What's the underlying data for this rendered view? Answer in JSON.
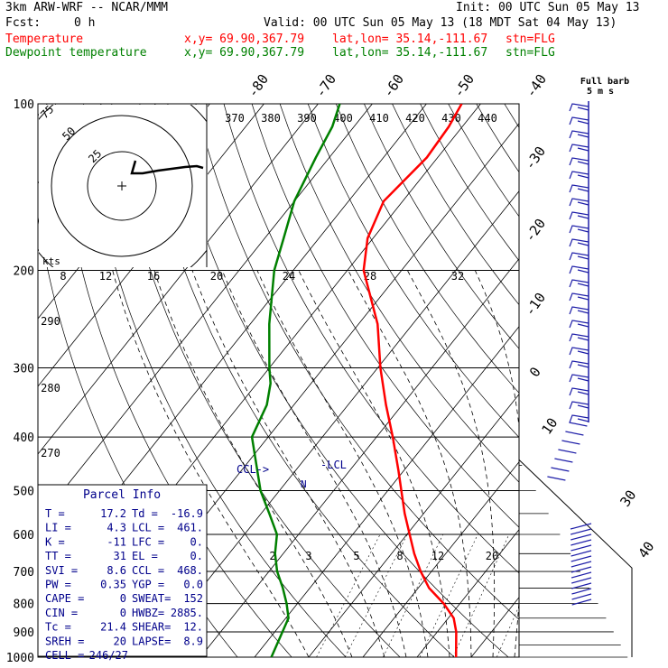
{
  "header": {
    "model": "3km ARW-WRF -- NCAR/MMM",
    "init": "Init: 00 UTC Sun 05 May 13",
    "fcst_label": "Fcst:",
    "fcst_value": "0 h",
    "valid": "Valid: 00 UTC Sun 05 May 13 (18 MDT Sat 04 May 13)",
    "temp_label": "Temperature",
    "dew_label": "Dewpoint temperature",
    "xy": "x,y= 69.90,367.79",
    "latlon": "lat,lon= 35.14,-111.67",
    "stn": "stn=FLG"
  },
  "colors": {
    "temperature": "#ff0000",
    "dewpoint": "#008000",
    "lcl": "#00008b",
    "text": "#000000"
  },
  "chart_data": {
    "type": "line",
    "title": "",
    "pressure_axis": {
      "unit": "hPa",
      "ticks": [
        100,
        200,
        300,
        400,
        500,
        600,
        700,
        800,
        900,
        1000
      ],
      "scale": "log"
    },
    "isotherm_labels": [
      "-80",
      "-70",
      "-60",
      "-50",
      "-40",
      "-30",
      "-20",
      "-10",
      "0",
      "10",
      "30",
      "40"
    ],
    "isotherm_values": [
      -80,
      -70,
      -60,
      -50,
      -40,
      -30,
      -20,
      -10,
      0,
      10,
      30,
      40
    ],
    "theta_labels": [
      "370",
      "380",
      "390",
      "400",
      "410",
      "420",
      "430",
      "440"
    ],
    "theta_left_labels": [
      "290",
      "280",
      "270"
    ],
    "mixing_ratio_labels": [
      "2",
      "3",
      "5",
      "8",
      "12",
      "20"
    ],
    "hodograph": {
      "speed_unit": "kts",
      "ring_labels": [
        "75",
        "50",
        "25"
      ],
      "axis_labels": [
        "8",
        "12",
        "16",
        "20",
        "24",
        "28",
        "32"
      ]
    },
    "series": [
      {
        "name": "Temperature",
        "points": [
          [
            1000,
            17.2
          ],
          [
            900,
            13.5
          ],
          [
            850,
            11.0
          ],
          [
            800,
            7.0
          ],
          [
            750,
            2.0
          ],
          [
            700,
            -2.0
          ],
          [
            650,
            -5.8
          ],
          [
            600,
            -9.5
          ],
          [
            550,
            -13.5
          ],
          [
            500,
            -17.5
          ],
          [
            460,
            -21.0
          ],
          [
            400,
            -27.0
          ],
          [
            350,
            -33.0
          ],
          [
            300,
            -39.5
          ],
          [
            250,
            -46.5
          ],
          [
            200,
            -57.0
          ],
          [
            175,
            -61.0
          ],
          [
            150,
            -63.5
          ],
          [
            125,
            -62.0
          ],
          [
            110,
            -62.5
          ],
          [
            100,
            -63.5
          ]
        ]
      },
      {
        "name": "Dewpoint temperature",
        "points": [
          [
            1000,
            -16.9
          ],
          [
            850,
            -19.5
          ],
          [
            800,
            -22.0
          ],
          [
            750,
            -25.0
          ],
          [
            700,
            -28.5
          ],
          [
            650,
            -31.5
          ],
          [
            600,
            -34.0
          ],
          [
            550,
            -38.5
          ],
          [
            500,
            -43.5
          ],
          [
            450,
            -48.0
          ],
          [
            400,
            -53.0
          ],
          [
            350,
            -55.0
          ],
          [
            320,
            -57.5
          ],
          [
            300,
            -60.0
          ],
          [
            250,
            -66.5
          ],
          [
            200,
            -73.5
          ],
          [
            175,
            -76.5
          ],
          [
            150,
            -80.0
          ],
          [
            125,
            -82.5
          ],
          [
            110,
            -84.0
          ],
          [
            100,
            -86.0
          ]
        ]
      }
    ],
    "annotations": {
      "ccl": "CCL->",
      "lcl": "-LCL",
      "n": "N"
    },
    "wind_barb_header": {
      "line1": "Full barb",
      "line2": "5 m s"
    }
  },
  "parcel_info": {
    "title": "Parcel Info",
    "rows": [
      {
        "label": "T =",
        "value": "17.2",
        "label2": "Td =",
        "value2": "-16.9"
      },
      {
        "label": "LI =",
        "value": "4.3",
        "label2": "LCL =",
        "value2": "461."
      },
      {
        "label": "K =",
        "value": "-11",
        "label2": "LFC =",
        "value2": "0."
      },
      {
        "label": "TT =",
        "value": "31",
        "label2": "EL =",
        "value2": "0."
      },
      {
        "label": "SVI =",
        "value": "8.6",
        "label2": "CCL =",
        "value2": "468."
      },
      {
        "label": "PW =",
        "value": "0.35",
        "label2": "YGP =",
        "value2": "0.0"
      },
      {
        "label": "CAPE =",
        "value": "0",
        "label2": "SWEAT=",
        "value2": "152"
      },
      {
        "label": "CIN =",
        "value": "0",
        "label2": "HWBZ=",
        "value2": "2885."
      },
      {
        "label": "Tc =",
        "value": "21.4",
        "label2": "SHEAR=",
        "value2": "12."
      },
      {
        "label": "SREH =",
        "value": "20",
        "label2": "LAPSE=",
        "value2": "8.9"
      }
    ],
    "cell_label": "CELL =",
    "cell_value": "246/27"
  }
}
